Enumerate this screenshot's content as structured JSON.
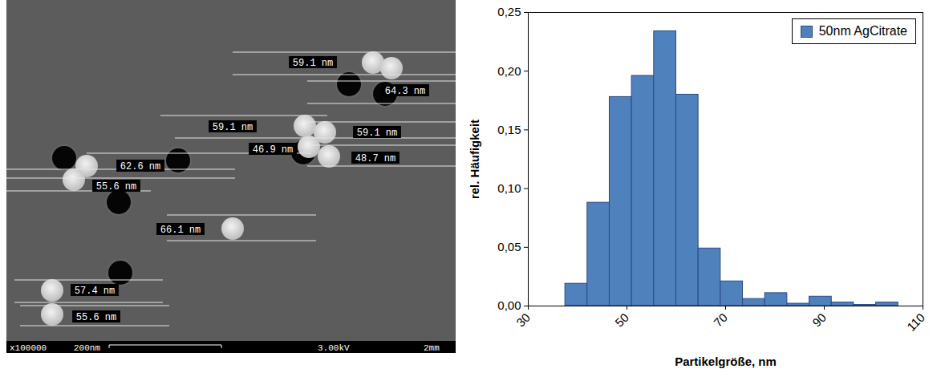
{
  "image": {
    "measurements": [
      "59.1 nm",
      "64.3 nm",
      "59.1 nm",
      "59.1 nm",
      "46.9 nm",
      "48.7 nm",
      "62.6 nm",
      "55.6 nm",
      "66.1 nm",
      "57.4 nm",
      "55.6 nm"
    ],
    "info_bar": [
      "x100000",
      "200nm",
      "3.00kV",
      "2mm"
    ]
  },
  "chart_data": {
    "type": "histogram",
    "xlabel": "Partikelgröße, nm",
    "ylabel": "rel. Häufigkeit",
    "bins": [
      37.5,
      42,
      46.5,
      51,
      55.5,
      60,
      64.5,
      69,
      73.5,
      78,
      82.5,
      87,
      91.5,
      96,
      100.5,
      105
    ],
    "series": [
      {
        "name": "50nm AgCitrate",
        "color": "#4f81bd",
        "values": [
          0.019,
          0.088,
          0.178,
          0.196,
          0.234,
          0.18,
          0.049,
          0.021,
          0.006,
          0.011,
          0.002,
          0.008,
          0.003,
          0.001,
          0.003
        ]
      }
    ],
    "xlim": [
      30,
      110
    ],
    "xticks": [
      30,
      50,
      70,
      90,
      110
    ],
    "ylim": [
      0,
      0.25
    ],
    "yticks": [
      {
        "value": 0,
        "label": "0,00"
      },
      {
        "value": 0.05,
        "label": "0,05"
      },
      {
        "value": 0.1,
        "label": "0,10"
      },
      {
        "value": 0.15,
        "label": "0,15"
      },
      {
        "value": 0.2,
        "label": "0,20"
      },
      {
        "value": 0.25,
        "label": "0,25"
      }
    ],
    "legend": "top-right",
    "grid": false
  }
}
